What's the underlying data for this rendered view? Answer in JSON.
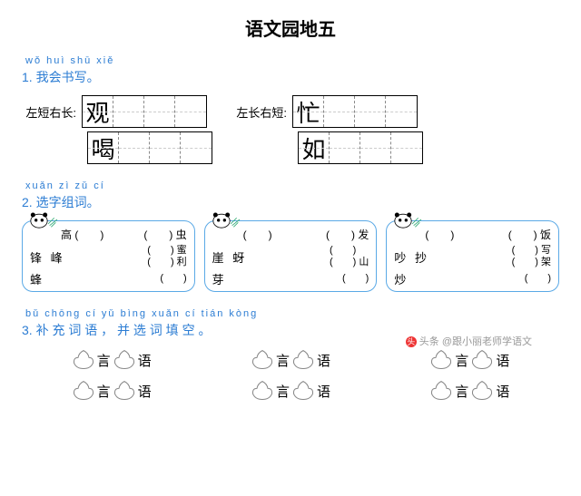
{
  "title": "语文园地五",
  "colors": {
    "accent": "#2b7cd3",
    "box_border": "#5aa9e6",
    "text": "#000000",
    "bg": "#ffffff"
  },
  "section1": {
    "pinyin": "wǒ huì shū xiě",
    "heading": "1. 我会书写。",
    "rows": [
      {
        "hint": "左短右长:",
        "chars": [
          "观",
          "",
          "",
          ""
        ],
        "hint2": "左长右短:",
        "chars2": [
          "忙",
          "",
          "",
          ""
        ]
      },
      {
        "hint": "",
        "chars": [
          "喝",
          "",
          "",
          ""
        ],
        "hint2": "",
        "chars2": [
          "如",
          "",
          "",
          ""
        ]
      }
    ]
  },
  "section2": {
    "pinyin": "xuǎn zì zǔ cí",
    "heading": "2. 选字组词。",
    "boxes": [
      {
        "top_left": "高",
        "top_right": "虫",
        "pairs": [
          {
            "chars": "锋 峰",
            "r1": "蜜",
            "r2": "利"
          },
          {
            "chars": "蜂",
            "r1": "",
            "r2": ""
          }
        ]
      },
      {
        "top_left": "",
        "top_right": "发",
        "pairs": [
          {
            "chars": "崖 蚜",
            "r1": "",
            "r2": "山"
          },
          {
            "chars": "芽",
            "r1": "",
            "r2": ""
          }
        ]
      },
      {
        "top_left": "",
        "top_right": "饭",
        "pairs": [
          {
            "chars": "吵 抄",
            "r1": "写",
            "r2": "架"
          },
          {
            "chars": "炒",
            "r1": "",
            "r2": ""
          }
        ]
      }
    ]
  },
  "section3": {
    "pinyin": "bǔ chōng cí yǔ    bìng xuǎn cí tián kòng",
    "heading": "3. 补 充 词 语 ， 并 选 词 填 空 。",
    "idiom_template": {
      "c1": "言",
      "c2": "语"
    },
    "columns": 3,
    "rows_per_column": 2
  },
  "watermark": "头条 @跟小丽老师学语文"
}
